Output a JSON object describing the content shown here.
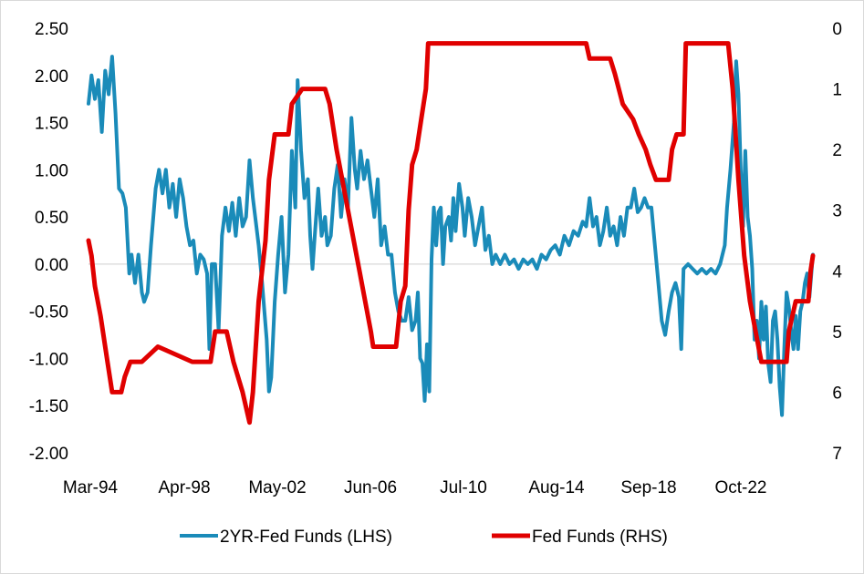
{
  "chart_data": {
    "type": "line",
    "title": "",
    "xlabel": "",
    "x_tick_labels": [
      "Mar-94",
      "Apr-98",
      "May-02",
      "Jun-06",
      "Jul-10",
      "Aug-14",
      "Sep-18",
      "Oct-22"
    ],
    "x_range_years": [
      1994.17,
      2025.8
    ],
    "left_axis": {
      "label": "2YR-Fed Funds (LHS)",
      "range": [
        -2.0,
        2.5
      ],
      "ticks": [
        "2.50",
        "2.00",
        "1.50",
        "1.00",
        "0.50",
        "0.00",
        "-0.50",
        "-1.00",
        "-1.50",
        "-2.00"
      ]
    },
    "right_axis": {
      "label": "Fed Funds (RHS)",
      "inverted": true,
      "range": [
        0,
        7
      ],
      "ticks": [
        "0",
        "1",
        "2",
        "3",
        "4",
        "5",
        "6",
        "7"
      ]
    },
    "legend_position": "bottom",
    "series": [
      {
        "name": "2YR-Fed Funds (LHS)",
        "axis": "left",
        "color": "#1a8bb9",
        "points": [
          [
            1994.17,
            1.7
          ],
          [
            1994.3,
            2.0
          ],
          [
            1994.45,
            1.75
          ],
          [
            1994.6,
            1.95
          ],
          [
            1994.75,
            1.4
          ],
          [
            1994.9,
            2.05
          ],
          [
            1995.05,
            1.8
          ],
          [
            1995.2,
            2.2
          ],
          [
            1995.35,
            1.6
          ],
          [
            1995.5,
            0.8
          ],
          [
            1995.65,
            0.75
          ],
          [
            1995.8,
            0.6
          ],
          [
            1995.95,
            -0.1
          ],
          [
            1996.05,
            0.1
          ],
          [
            1996.2,
            -0.2
          ],
          [
            1996.35,
            0.1
          ],
          [
            1996.5,
            -0.3
          ],
          [
            1996.6,
            -0.4
          ],
          [
            1996.75,
            -0.3
          ],
          [
            1996.9,
            0.2
          ],
          [
            1997.1,
            0.8
          ],
          [
            1997.25,
            1.0
          ],
          [
            1997.4,
            0.75
          ],
          [
            1997.55,
            1.0
          ],
          [
            1997.7,
            0.6
          ],
          [
            1997.85,
            0.85
          ],
          [
            1998.0,
            0.5
          ],
          [
            1998.15,
            0.9
          ],
          [
            1998.3,
            0.7
          ],
          [
            1998.45,
            0.4
          ],
          [
            1998.6,
            0.2
          ],
          [
            1998.75,
            0.25
          ],
          [
            1998.9,
            -0.1
          ],
          [
            1999.05,
            0.1
          ],
          [
            1999.2,
            0.05
          ],
          [
            1999.35,
            -0.1
          ],
          [
            1999.45,
            -0.9
          ],
          [
            1999.55,
            0.0
          ],
          [
            1999.7,
            0.0
          ],
          [
            1999.85,
            -0.7
          ],
          [
            2000.0,
            0.3
          ],
          [
            2000.15,
            0.6
          ],
          [
            2000.3,
            0.35
          ],
          [
            2000.45,
            0.65
          ],
          [
            2000.6,
            0.3
          ],
          [
            2000.75,
            0.7
          ],
          [
            2000.9,
            0.4
          ],
          [
            2001.05,
            0.5
          ],
          [
            2001.2,
            1.1
          ],
          [
            2001.35,
            0.7
          ],
          [
            2001.5,
            0.4
          ],
          [
            2001.6,
            0.2
          ],
          [
            2001.75,
            -0.2
          ],
          [
            2001.85,
            -0.5
          ],
          [
            2001.95,
            -0.8
          ],
          [
            2002.05,
            -1.35
          ],
          [
            2002.15,
            -1.2
          ],
          [
            2002.3,
            -0.4
          ],
          [
            2002.45,
            0.1
          ],
          [
            2002.6,
            0.5
          ],
          [
            2002.75,
            -0.3
          ],
          [
            2002.9,
            0.1
          ],
          [
            2003.05,
            1.2
          ],
          [
            2003.2,
            0.6
          ],
          [
            2003.3,
            1.95
          ],
          [
            2003.45,
            1.2
          ],
          [
            2003.6,
            0.7
          ],
          [
            2003.75,
            0.9
          ],
          [
            2003.85,
            0.3
          ],
          [
            2003.95,
            -0.05
          ],
          [
            2004.05,
            0.3
          ],
          [
            2004.2,
            0.8
          ],
          [
            2004.35,
            0.3
          ],
          [
            2004.5,
            0.5
          ],
          [
            2004.6,
            0.2
          ],
          [
            2004.75,
            0.3
          ],
          [
            2004.9,
            0.8
          ],
          [
            2005.05,
            1.05
          ],
          [
            2005.2,
            0.5
          ],
          [
            2005.35,
            0.9
          ],
          [
            2005.5,
            0.6
          ],
          [
            2005.65,
            1.55
          ],
          [
            2005.8,
            1.0
          ],
          [
            2005.9,
            0.8
          ],
          [
            2006.05,
            1.2
          ],
          [
            2006.2,
            0.9
          ],
          [
            2006.35,
            1.1
          ],
          [
            2006.5,
            0.8
          ],
          [
            2006.65,
            0.5
          ],
          [
            2006.8,
            0.9
          ],
          [
            2006.95,
            0.2
          ],
          [
            2007.1,
            0.4
          ],
          [
            2007.25,
            0.1
          ],
          [
            2007.4,
            0.1
          ],
          [
            2007.55,
            -0.3
          ],
          [
            2007.7,
            -0.5
          ],
          [
            2007.85,
            -0.6
          ],
          [
            2008.0,
            -0.6
          ],
          [
            2008.15,
            -0.35
          ],
          [
            2008.3,
            -0.7
          ],
          [
            2008.45,
            -0.6
          ],
          [
            2008.55,
            -0.3
          ],
          [
            2008.65,
            -1.0
          ],
          [
            2008.75,
            -1.05
          ],
          [
            2008.85,
            -1.45
          ],
          [
            2008.95,
            -0.85
          ],
          [
            2009.05,
            -1.35
          ],
          [
            2009.15,
            0.05
          ],
          [
            2009.25,
            0.6
          ],
          [
            2009.35,
            0.2
          ],
          [
            2009.45,
            0.55
          ],
          [
            2009.55,
            0.6
          ],
          [
            2009.65,
            0.0
          ],
          [
            2009.75,
            0.4
          ],
          [
            2009.9,
            0.5
          ],
          [
            2010.0,
            0.25
          ],
          [
            2010.1,
            0.7
          ],
          [
            2010.2,
            0.35
          ],
          [
            2010.35,
            0.85
          ],
          [
            2010.5,
            0.6
          ],
          [
            2010.6,
            0.3
          ],
          [
            2010.75,
            0.7
          ],
          [
            2010.9,
            0.5
          ],
          [
            2011.05,
            0.2
          ],
          [
            2011.2,
            0.4
          ],
          [
            2011.35,
            0.6
          ],
          [
            2011.5,
            0.15
          ],
          [
            2011.65,
            0.3
          ],
          [
            2011.8,
            0.0
          ],
          [
            2011.95,
            0.1
          ],
          [
            2012.15,
            0.0
          ],
          [
            2012.35,
            0.1
          ],
          [
            2012.55,
            0.0
          ],
          [
            2012.75,
            0.05
          ],
          [
            2012.95,
            -0.05
          ],
          [
            2013.15,
            0.05
          ],
          [
            2013.35,
            0.0
          ],
          [
            2013.55,
            0.05
          ],
          [
            2013.75,
            -0.05
          ],
          [
            2013.95,
            0.1
          ],
          [
            2014.15,
            0.05
          ],
          [
            2014.35,
            0.15
          ],
          [
            2014.55,
            0.2
          ],
          [
            2014.75,
            0.1
          ],
          [
            2014.95,
            0.3
          ],
          [
            2015.15,
            0.2
          ],
          [
            2015.35,
            0.35
          ],
          [
            2015.55,
            0.3
          ],
          [
            2015.75,
            0.45
          ],
          [
            2015.9,
            0.4
          ],
          [
            2016.05,
            0.7
          ],
          [
            2016.2,
            0.4
          ],
          [
            2016.35,
            0.5
          ],
          [
            2016.5,
            0.2
          ],
          [
            2016.65,
            0.35
          ],
          [
            2016.8,
            0.6
          ],
          [
            2016.95,
            0.3
          ],
          [
            2017.1,
            0.4
          ],
          [
            2017.25,
            0.2
          ],
          [
            2017.4,
            0.5
          ],
          [
            2017.55,
            0.3
          ],
          [
            2017.7,
            0.6
          ],
          [
            2017.85,
            0.6
          ],
          [
            2018.0,
            0.8
          ],
          [
            2018.15,
            0.55
          ],
          [
            2018.3,
            0.6
          ],
          [
            2018.45,
            0.7
          ],
          [
            2018.6,
            0.6
          ],
          [
            2018.75,
            0.6
          ],
          [
            2018.9,
            0.2
          ],
          [
            2019.05,
            -0.2
          ],
          [
            2019.2,
            -0.6
          ],
          [
            2019.35,
            -0.75
          ],
          [
            2019.5,
            -0.5
          ],
          [
            2019.65,
            -0.3
          ],
          [
            2019.8,
            -0.2
          ],
          [
            2019.95,
            -0.35
          ],
          [
            2020.05,
            -0.9
          ],
          [
            2020.15,
            -0.05
          ],
          [
            2020.35,
            0.0
          ],
          [
            2020.55,
            -0.05
          ],
          [
            2020.75,
            -0.1
          ],
          [
            2020.95,
            -0.05
          ],
          [
            2021.15,
            -0.1
          ],
          [
            2021.35,
            -0.05
          ],
          [
            2021.55,
            -0.1
          ],
          [
            2021.75,
            0.0
          ],
          [
            2021.95,
            0.2
          ],
          [
            2022.05,
            0.6
          ],
          [
            2022.2,
            1.0
          ],
          [
            2022.35,
            1.5
          ],
          [
            2022.45,
            2.15
          ],
          [
            2022.55,
            1.8
          ],
          [
            2022.65,
            1.0
          ],
          [
            2022.75,
            0.4
          ],
          [
            2022.85,
            1.2
          ],
          [
            2022.95,
            0.5
          ],
          [
            2023.05,
            0.3
          ],
          [
            2023.15,
            -0.05
          ],
          [
            2023.25,
            -0.8
          ],
          [
            2023.35,
            -0.6
          ],
          [
            2023.45,
            -1.0
          ],
          [
            2023.55,
            -0.4
          ],
          [
            2023.65,
            -0.8
          ],
          [
            2023.75,
            -0.45
          ],
          [
            2023.85,
            -1.05
          ],
          [
            2023.95,
            -1.25
          ],
          [
            2024.05,
            -0.6
          ],
          [
            2024.15,
            -0.5
          ],
          [
            2024.25,
            -0.8
          ],
          [
            2024.35,
            -1.3
          ],
          [
            2024.45,
            -1.6
          ],
          [
            2024.55,
            -0.9
          ],
          [
            2024.65,
            -0.3
          ],
          [
            2024.75,
            -0.45
          ],
          [
            2024.85,
            -0.7
          ],
          [
            2024.95,
            -0.9
          ],
          [
            2025.05,
            -0.55
          ],
          [
            2025.15,
            -0.9
          ],
          [
            2025.25,
            -0.5
          ],
          [
            2025.35,
            -0.4
          ],
          [
            2025.45,
            -0.2
          ],
          [
            2025.55,
            -0.1
          ],
          [
            2025.65,
            -0.35
          ],
          [
            2025.8,
            0.1
          ]
        ]
      },
      {
        "name": "Fed Funds (RHS)",
        "axis": "right",
        "color": "#e00000",
        "points": [
          [
            1994.17,
            3.5
          ],
          [
            1994.3,
            3.75
          ],
          [
            1994.45,
            4.25
          ],
          [
            1994.7,
            4.75
          ],
          [
            1995.0,
            5.5
          ],
          [
            1995.2,
            6.0
          ],
          [
            1995.6,
            6.0
          ],
          [
            1995.75,
            5.75
          ],
          [
            1996.0,
            5.5
          ],
          [
            1996.5,
            5.5
          ],
          [
            1997.2,
            5.25
          ],
          [
            1998.7,
            5.5
          ],
          [
            1999.5,
            5.5
          ],
          [
            1999.7,
            5.0
          ],
          [
            2000.2,
            5.0
          ],
          [
            2000.5,
            5.5
          ],
          [
            2000.9,
            6.0
          ],
          [
            2001.2,
            6.5
          ],
          [
            2001.35,
            6.0
          ],
          [
            2001.6,
            4.5
          ],
          [
            2001.9,
            3.5
          ],
          [
            2002.05,
            2.5
          ],
          [
            2002.3,
            1.75
          ],
          [
            2002.9,
            1.75
          ],
          [
            2003.05,
            1.25
          ],
          [
            2003.5,
            1.0
          ],
          [
            2004.5,
            1.0
          ],
          [
            2004.7,
            1.25
          ],
          [
            2005.0,
            2.0
          ],
          [
            2005.5,
            3.0
          ],
          [
            2006.0,
            4.0
          ],
          [
            2006.5,
            5.0
          ],
          [
            2006.6,
            5.25
          ],
          [
            2007.6,
            5.25
          ],
          [
            2007.8,
            4.5
          ],
          [
            2008.0,
            4.25
          ],
          [
            2008.15,
            3.0
          ],
          [
            2008.3,
            2.25
          ],
          [
            2008.5,
            2.0
          ],
          [
            2008.7,
            1.5
          ],
          [
            2008.9,
            1.0
          ],
          [
            2009.0,
            0.25
          ],
          [
            2015.9,
            0.25
          ],
          [
            2016.05,
            0.5
          ],
          [
            2016.95,
            0.5
          ],
          [
            2017.15,
            0.75
          ],
          [
            2017.5,
            1.25
          ],
          [
            2017.95,
            1.5
          ],
          [
            2018.2,
            1.75
          ],
          [
            2018.5,
            2.0
          ],
          [
            2018.7,
            2.25
          ],
          [
            2018.95,
            2.5
          ],
          [
            2019.5,
            2.5
          ],
          [
            2019.65,
            2.0
          ],
          [
            2019.85,
            1.75
          ],
          [
            2020.15,
            1.75
          ],
          [
            2020.25,
            0.25
          ],
          [
            2022.1,
            0.25
          ],
          [
            2022.3,
            1.0
          ],
          [
            2022.55,
            2.5
          ],
          [
            2022.8,
            3.75
          ],
          [
            2023.05,
            4.5
          ],
          [
            2023.3,
            5.0
          ],
          [
            2023.55,
            5.5
          ],
          [
            2024.65,
            5.5
          ],
          [
            2024.75,
            5.0
          ],
          [
            2024.9,
            4.75
          ],
          [
            2025.05,
            4.5
          ],
          [
            2025.6,
            4.5
          ],
          [
            2025.7,
            4.0
          ],
          [
            2025.8,
            3.75
          ]
        ]
      }
    ]
  }
}
